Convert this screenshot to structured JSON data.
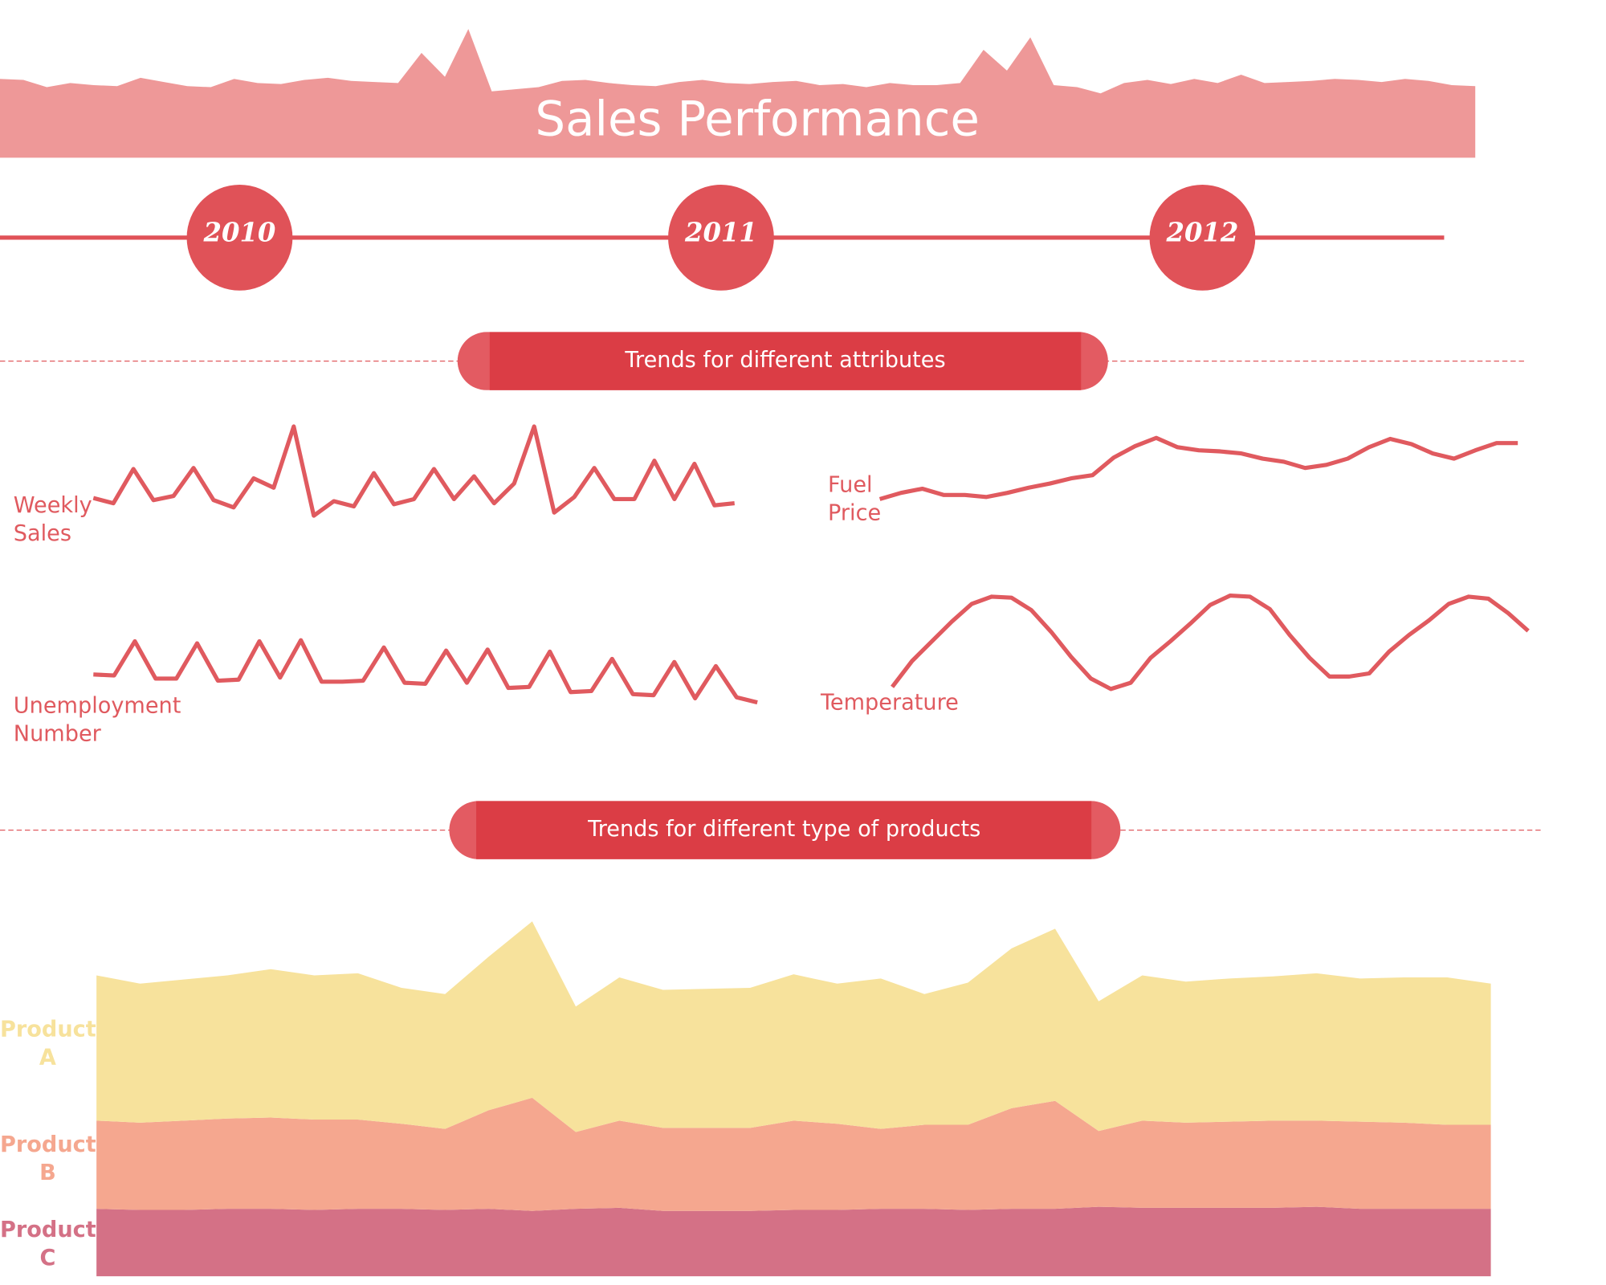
{
  "header": {
    "title": "Sales Performance"
  },
  "timeline": {
    "years": [
      "2010",
      "2011",
      "2012"
    ]
  },
  "sections": [
    {
      "title": "Trends for different attributes"
    },
    {
      "title": "Trends for different type of products"
    }
  ],
  "chart_data": [
    {
      "type": "area",
      "color": "#ee9898",
      "values": [
        76,
        75,
        68,
        72,
        70,
        69,
        77,
        73,
        69,
        68,
        76,
        72,
        71,
        75,
        77,
        74,
        73,
        72,
        101,
        78,
        124,
        64,
        66,
        68,
        74,
        75,
        72,
        70,
        69,
        73,
        75,
        72,
        71,
        73,
        74,
        70,
        71,
        68,
        72,
        70,
        70,
        72,
        104,
        84,
        116,
        70,
        68,
        62,
        72,
        75,
        71,
        76,
        72,
        80,
        72,
        73,
        74,
        76,
        75,
        73,
        76,
        74,
        70,
        69
      ]
    },
    {
      "type": "line",
      "title": "Weekly Sales",
      "color": "#e05a5f",
      "values": [
        20,
        15,
        48,
        18,
        22,
        49,
        18,
        11,
        39,
        30,
        89,
        3,
        17,
        12,
        44,
        14,
        19,
        48,
        19,
        41,
        15,
        34,
        89,
        6,
        21,
        49,
        19,
        19,
        56,
        19,
        53,
        13,
        15
      ]
    },
    {
      "type": "line",
      "title": "Fuel Price",
      "color": "#e05a5f",
      "values": [
        9,
        15,
        19,
        13,
        13,
        11,
        15,
        20,
        24,
        29,
        32,
        49,
        60,
        68,
        59,
        56,
        55,
        53,
        48,
        45,
        39,
        42,
        48,
        59,
        67,
        62,
        53,
        48,
        56,
        63,
        63
      ]
    },
    {
      "type": "line",
      "title": "Unemployment Number",
      "color": "#e05a5f",
      "values": [
        40,
        39,
        72,
        36,
        36,
        70,
        34,
        35,
        72,
        37,
        73,
        33,
        33,
        34,
        66,
        32,
        31,
        63,
        32,
        64,
        27,
        28,
        62,
        23,
        24,
        55,
        21,
        20,
        52,
        17,
        48,
        18,
        13
      ]
    },
    {
      "type": "line",
      "title": "Temperature",
      "color": "#e05a5f",
      "values": [
        28,
        53,
        72,
        91,
        108,
        115,
        114,
        102,
        81,
        57,
        36,
        26,
        32,
        56,
        72,
        89,
        107,
        116,
        115,
        103,
        78,
        56,
        38,
        38,
        41,
        62,
        78,
        92,
        108,
        115,
        113,
        99,
        82
      ]
    },
    {
      "type": "stacked_area",
      "series": [
        {
          "name": "Product C",
          "color": "#d47186",
          "values": [
            65,
            64,
            64,
            65,
            65,
            64,
            65,
            65,
            64,
            65,
            63,
            65,
            66,
            63,
            63,
            63,
            64,
            64,
            65,
            65,
            64,
            65,
            65,
            67,
            66,
            66,
            66,
            66,
            67,
            65,
            65,
            65,
            65
          ]
        },
        {
          "name": "Product B",
          "color": "#f5a78f",
          "values": [
            85,
            84,
            86,
            87,
            88,
            87,
            86,
            82,
            78,
            95,
            109,
            74,
            84,
            80,
            80,
            80,
            86,
            83,
            77,
            81,
            82,
            97,
            104,
            73,
            84,
            82,
            83,
            84,
            83,
            84,
            83,
            81,
            81
          ]
        },
        {
          "name": "Product A",
          "color": "#f7e29c",
          "values": [
            140,
            134,
            136,
            138,
            143,
            139,
            141,
            131,
            130,
            148,
            170,
            121,
            138,
            133,
            134,
            135,
            141,
            135,
            145,
            126,
            137,
            154,
            166,
            125,
            140,
            136,
            138,
            139,
            142,
            138,
            140,
            142,
            136
          ]
        }
      ]
    }
  ]
}
